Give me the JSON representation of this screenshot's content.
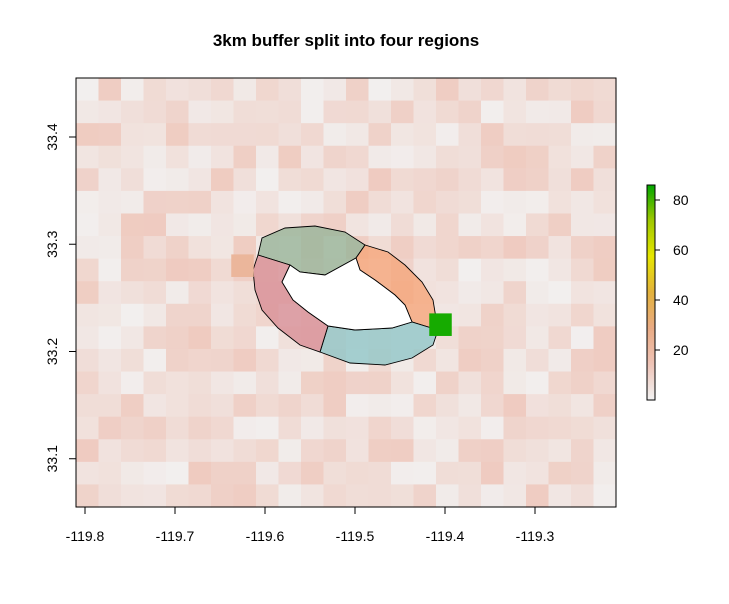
{
  "chart_data": {
    "type": "heatmap",
    "title": "3km buffer split into four regions",
    "xlabel": "",
    "ylabel": "",
    "xlim": [
      -119.81,
      -119.21
    ],
    "ylim": [
      33.055,
      33.455
    ],
    "x_ticks": [
      -119.8,
      -119.7,
      -119.6,
      -119.5,
      -119.4,
      -119.3
    ],
    "x_tick_labels": [
      "-119.8",
      "-119.7",
      "-119.6",
      "-119.5",
      "-119.4",
      "-119.3"
    ],
    "y_ticks": [
      33.1,
      33.2,
      33.3,
      33.4
    ],
    "y_tick_labels": [
      "33.1",
      "33.2",
      "33.3",
      "33.4"
    ],
    "legend": {
      "position": "right",
      "ticks": [
        20,
        40,
        60,
        80
      ],
      "tick_labels": [
        "20",
        "40",
        "60",
        "80"
      ],
      "range": [
        0,
        86
      ],
      "colors": [
        "#f2f2f2",
        "#eec3b6",
        "#e9ab84",
        "#e3b23c",
        "#e6e600",
        "#9fc800",
        "#00a600"
      ]
    },
    "background_value_range": [
      1,
      12
    ],
    "highlight_cells": [
      {
        "lon": -119.625,
        "lat": 33.28,
        "value": 22
      },
      {
        "lon": -119.405,
        "lat": 33.225,
        "value": 84
      }
    ],
    "regions": [
      {
        "name": "north",
        "color": "#9ab49a"
      },
      {
        "name": "east",
        "color": "#f5a77d"
      },
      {
        "name": "south",
        "color": "#93c7c8"
      },
      {
        "name": "west",
        "color": "#d89097"
      }
    ]
  }
}
